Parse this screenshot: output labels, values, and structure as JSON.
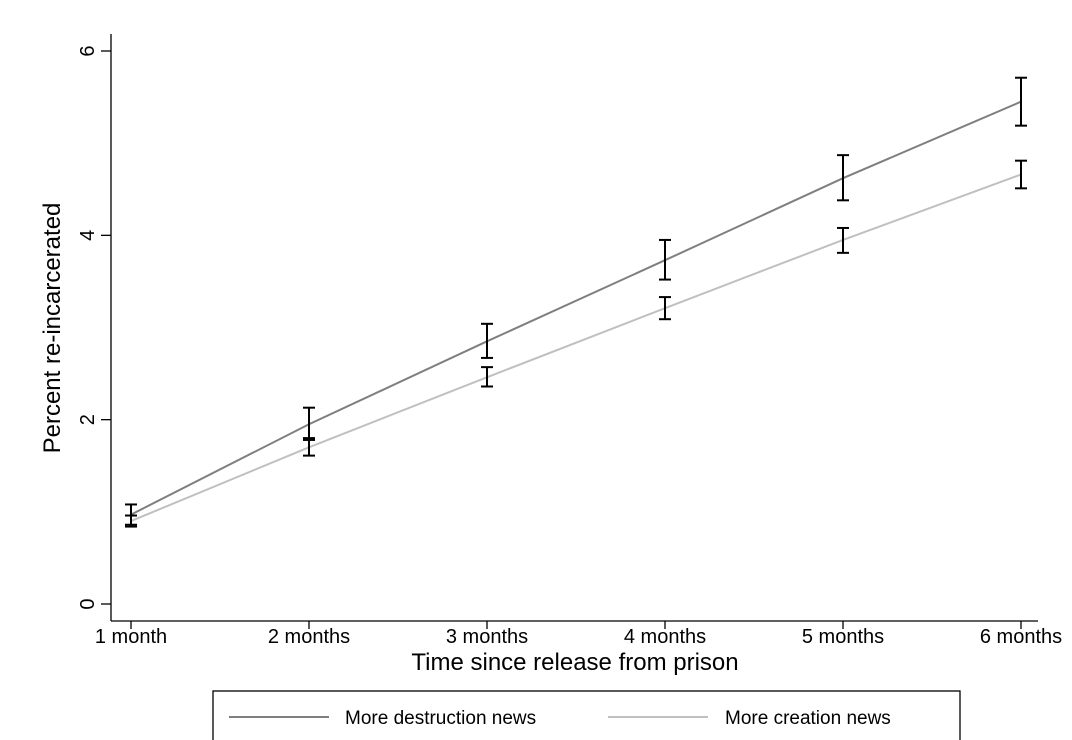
{
  "chart_data": {
    "type": "line",
    "title": "",
    "xlabel": "Time since release from prison",
    "ylabel": "Percent re-incarcerated",
    "categories": [
      "1 month",
      "2 months",
      "3 months",
      "4 months",
      "5 months",
      "6 months"
    ],
    "y_ticks": [
      "0",
      "2",
      "4",
      "6"
    ],
    "ylim": [
      0,
      6
    ],
    "grid": false,
    "legend_position": "bottom",
    "series": [
      {
        "name": "More destruction news",
        "color": "#7f7f7f",
        "values": [
          0.97,
          1.95,
          2.85,
          3.73,
          4.62,
          5.45
        ],
        "ci_low": [
          0.86,
          1.78,
          2.67,
          3.52,
          4.38,
          5.19
        ],
        "ci_high": [
          1.08,
          2.13,
          3.04,
          3.95,
          4.87,
          5.71
        ]
      },
      {
        "name": "More creation news",
        "color": "#c0c0c0",
        "values": [
          0.9,
          1.7,
          2.46,
          3.21,
          3.95,
          4.66
        ],
        "ci_low": [
          0.84,
          1.61,
          2.36,
          3.09,
          3.81,
          4.51
        ],
        "ci_high": [
          0.96,
          1.8,
          2.57,
          3.33,
          4.08,
          4.81
        ]
      }
    ]
  }
}
